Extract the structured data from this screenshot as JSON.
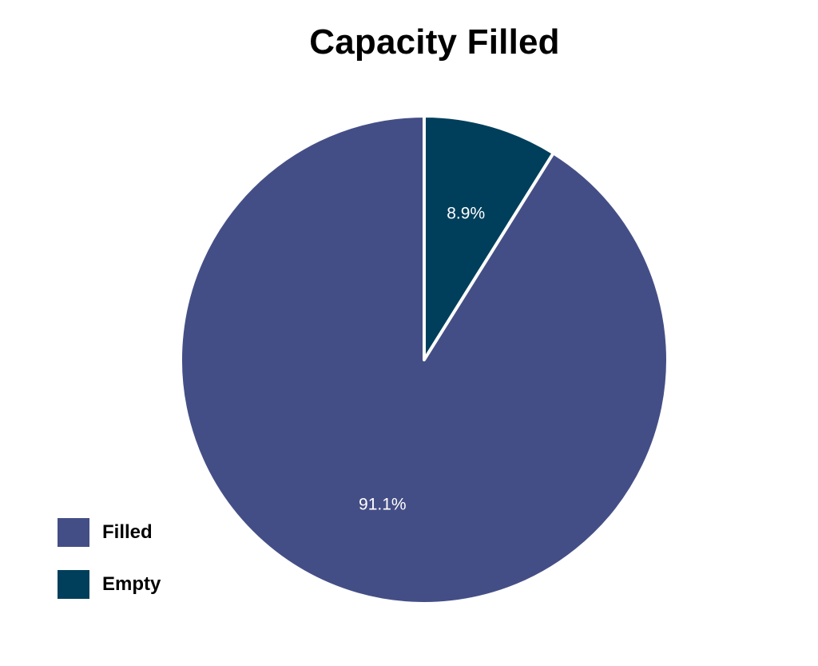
{
  "chart_data": {
    "type": "pie",
    "title": "Capacity Filled",
    "start_angle": "12 o'clock",
    "direction": "clockwise",
    "legend_position": "bottom-left",
    "slices": [
      {
        "label": "Empty",
        "value": 8.9,
        "display": "8.9%",
        "color": "#003f5c"
      },
      {
        "label": "Filled",
        "value": 91.1,
        "display": "91.1%",
        "color": "#444e86"
      }
    ],
    "legend": [
      {
        "label": "Filled",
        "color": "#444e86"
      },
      {
        "label": "Empty",
        "color": "#003f5c"
      }
    ]
  }
}
